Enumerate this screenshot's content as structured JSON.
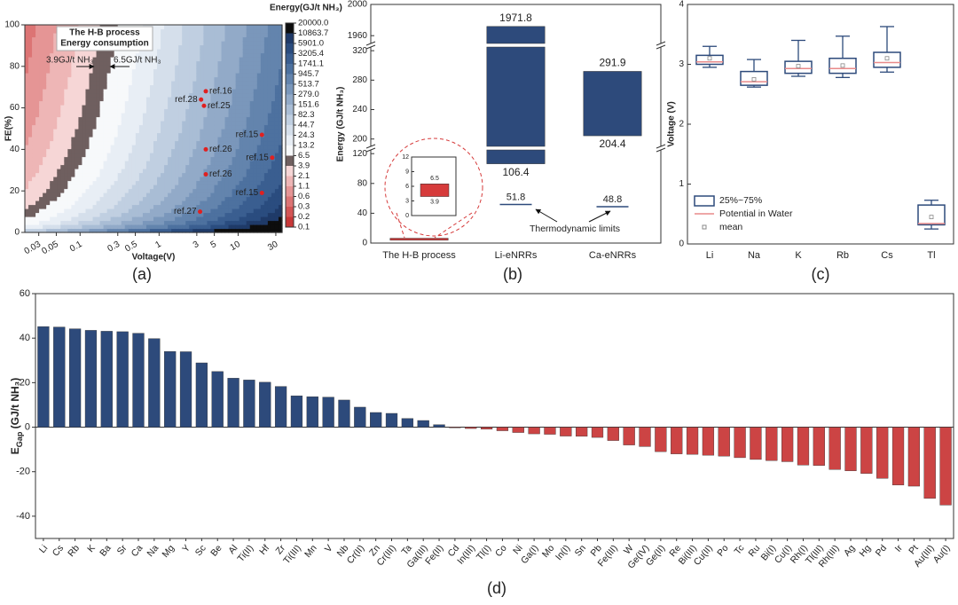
{
  "panel_labels": [
    "(a)",
    "(b)",
    "(c)",
    "(d)"
  ],
  "chart_data": [
    {
      "type": "contour",
      "colorbar_title": "Energy(GJ/t NH₃)",
      "colorbar_levels": [
        {
          "value": 20000,
          "label": "20000.0"
        },
        10863.7,
        {
          "value": 5901,
          "label": "5901.0"
        },
        3205.4,
        1741.1,
        945.7,
        513.7,
        {
          "value": 279,
          "label": "279.0"
        },
        151.6,
        82.3,
        44.7,
        24.3,
        13.2,
        6.5,
        3.9,
        2.1,
        1.1,
        0.6,
        0.3,
        0.2,
        0.1
      ],
      "colorbar_colors": [
        "#0d0d0d",
        "#1f3a68",
        "#2a4c7f",
        "#3a5e90",
        "#4d719f",
        "#6384ad",
        "#7a97bb",
        "#92aac8",
        "#a9bdd5",
        "#c0cfe1",
        "#d5dfeb",
        "#e8eef5",
        "#f7f9fb",
        "#6f5f5f",
        "#f6d6d6",
        "#eeb6b6",
        "#e59595",
        "#dc7474",
        "#d35555",
        "#c83838"
      ],
      "xlabel": "Voltage(V)",
      "ylabel": "FE(%)",
      "xscale": "log",
      "xlim": [
        0.02,
        36
      ],
      "xticks": [
        0.03,
        0.05,
        0.1,
        0.3,
        0.5,
        1,
        3,
        5,
        10,
        30
      ],
      "ylim": [
        0,
        100
      ],
      "yticks": [
        0,
        20,
        40,
        60,
        80,
        100
      ],
      "box_text": [
        "The H-B process",
        "Energy consumption"
      ],
      "threshold_labels": [
        "3.9GJ/t NH₃",
        "6.5GJ/t NH₃"
      ],
      "points": {
        "labels": [
          "ref.16",
          "ref.28",
          "ref.25",
          "ref.15",
          "ref.26",
          "ref.15",
          "ref.26",
          "ref.15",
          "ref.27"
        ],
        "x": [
          3.9,
          3.4,
          3.7,
          20,
          3.9,
          27,
          3.9,
          20,
          3.3
        ],
        "y": [
          68,
          64,
          61,
          47,
          40,
          36,
          28,
          19,
          10
        ],
        "color": "#e02020"
      }
    },
    {
      "type": "broken_bar",
      "categories": [
        "The H-B process",
        "Li-eNRRs",
        "Ca-eNRRs"
      ],
      "low": [
        3.9,
        106.4,
        204.4
      ],
      "high": [
        6.5,
        1971.8,
        291.9
      ],
      "colors": [
        "#d63b3b",
        "#2d4a7b",
        "#2d4a7b"
      ],
      "limits": [
        null,
        51.8,
        48.8
      ],
      "limits_label": "Thermodynamic limits",
      "limits_color": "#2d4a7b",
      "ylabel": "Energy (GJ/t NH₃)",
      "segments": [
        {
          "ylim": [
            0,
            125
          ],
          "yticks": [
            0,
            40,
            80,
            120
          ]
        },
        {
          "ylim": [
            190,
            325
          ],
          "yticks": [
            200,
            240,
            280,
            320
          ]
        },
        {
          "ylim": [
            1950,
            2000
          ],
          "yticks": [
            1960,
            2000
          ]
        }
      ],
      "inset": {
        "ylim": [
          0,
          12
        ],
        "yticks": [
          0,
          3,
          6,
          9,
          12
        ]
      }
    },
    {
      "type": "box",
      "categories": [
        "Li",
        "Na",
        "K",
        "Rb",
        "Cs",
        "Tl"
      ],
      "min": [
        2.95,
        2.62,
        2.8,
        2.78,
        2.87,
        0.25
      ],
      "q1": [
        3.0,
        2.65,
        2.85,
        2.85,
        2.95,
        0.32
      ],
      "q3": [
        3.15,
        2.88,
        3.05,
        3.1,
        3.2,
        0.65
      ],
      "max": [
        3.3,
        3.08,
        3.4,
        3.47,
        3.63,
        0.73
      ],
      "potential": [
        3.04,
        2.71,
        2.93,
        2.93,
        3.03,
        0.34
      ],
      "mean": [
        3.1,
        2.75,
        2.97,
        2.98,
        3.1,
        0.45
      ],
      "ylim": [
        0,
        4
      ],
      "yticks": [
        0,
        1,
        2,
        3,
        4
      ],
      "ylabel": "Voltage (V)",
      "legend": [
        "25%~75%",
        "Potential in Water",
        "mean"
      ],
      "legend_position": "lower left",
      "box_color": "#2d4a7b",
      "line_color": "#e88a8a",
      "mean_color": "#888888"
    },
    {
      "type": "bar",
      "categories": [
        "Li",
        "Cs",
        "Rb",
        "K",
        "Ba",
        "Sr",
        "Ca",
        "Na",
        "Mg",
        "Y",
        "Sc",
        "Be",
        "Al",
        "Ti(II)",
        "Hf",
        "Zr",
        "Ti(III)",
        "Mn",
        "V",
        "Nb",
        "Cr(II)",
        "Zn",
        "Cr(III)",
        "Ta",
        "Ga(III)",
        "Fe(II)",
        "Cd",
        "In(III)",
        "Tl(I)",
        "Co",
        "Ni",
        "Ga(I)",
        "Mo",
        "In(I)",
        "Sn",
        "Pb",
        "Fe(III)",
        "W",
        "Ge(IV)",
        "Ge(II)",
        "Re",
        "Bi(III)",
        "Cu(II)",
        "Po",
        "Tc",
        "Ru",
        "Bi(I)",
        "Cu(I)",
        "Rh(I)",
        "Tl(III)",
        "Rh(III)",
        "Ag",
        "Hg",
        "Pd",
        "Ir",
        "Pt",
        "Au(III)",
        "Au(I)"
      ],
      "values": [
        45.2,
        45,
        44.2,
        43.5,
        43.1,
        42.9,
        42.2,
        39.8,
        34,
        33.9,
        28.9,
        25,
        22,
        21.2,
        20.2,
        18.3,
        14.1,
        13.7,
        13.5,
        12.2,
        9,
        6.6,
        6.2,
        3.9,
        3,
        1.1,
        -0.3,
        -0.6,
        -0.9,
        -1.6,
        -2.4,
        -3,
        -3.2,
        -4,
        -4.1,
        -4.6,
        -6,
        -8,
        -8.7,
        -11,
        -12,
        -12.2,
        -12.6,
        -13,
        -13.7,
        -14.5,
        -15,
        -15.5,
        -17,
        -17.2,
        -19,
        -19.6,
        -20.8,
        -23,
        -26,
        -26.5,
        -32,
        -35
      ],
      "positive_color": "#2d4a7b",
      "negative_color": "#cc4444",
      "ylim": [
        -50,
        60
      ],
      "yticks": [
        -40,
        -20,
        0,
        20,
        40,
        60
      ],
      "ylabel": "E",
      "ylabel_sub": "Gap",
      "ylabel_unit": " (GJ/t NH₃)"
    }
  ]
}
